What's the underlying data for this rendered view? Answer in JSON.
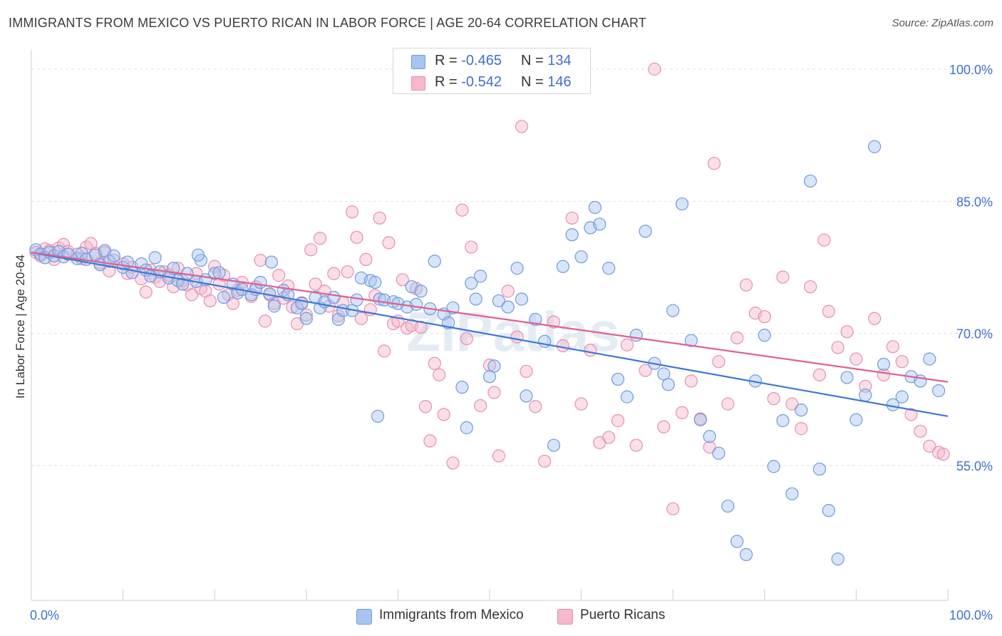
{
  "title": "IMMIGRANTS FROM MEXICO VS PUERTO RICAN IN LABOR FORCE | AGE 20-64 CORRELATION CHART",
  "source": "Source: ZipAtlas.com",
  "watermark": "ZIPatlas",
  "legend": {
    "rows": [
      {
        "r_label": "R =",
        "r_value": "-0.465",
        "n_label": "N =",
        "n_value": "134"
      },
      {
        "r_label": "R =",
        "r_value": "-0.542",
        "n_label": "N =",
        "n_value": "146"
      }
    ]
  },
  "bottom_legend": [
    "Immigrants from Mexico",
    "Puerto Ricans"
  ],
  "colors": {
    "blue_fill": "#a9c4f0",
    "blue_stroke": "#6e9be0",
    "blue_line": "#3b78d8",
    "pink_fill": "#f5b8cc",
    "pink_stroke": "#e78fae",
    "pink_line": "#e0608e",
    "tick_text": "#3f6fd1",
    "grid": "#e2e2e2"
  },
  "chart_data": {
    "type": "scatter",
    "title": "IMMIGRANTS FROM MEXICO VS PUERTO RICAN IN LABOR FORCE | AGE 20-64 CORRELATION CHART",
    "xlabel": "",
    "ylabel": "In Labor Force | Age 20-64",
    "xlim": [
      0,
      100
    ],
    "ylim": [
      40,
      102
    ],
    "x_tick_labels": [
      "0.0%",
      "100.0%"
    ],
    "y_ticks": [
      55,
      70,
      85,
      100
    ],
    "y_tick_labels": [
      "55.0%",
      "70.0%",
      "85.0%",
      "100.0%"
    ],
    "grid": true,
    "legend_position": "top-center",
    "series": [
      {
        "name": "Immigrants from Mexico",
        "r": -0.465,
        "n": 134,
        "trend": {
          "x": [
            0,
            100
          ],
          "y": [
            79.2,
            60.6
          ]
        },
        "points": [
          [
            0.5,
            79.5
          ],
          [
            1.0,
            79.0
          ],
          [
            1.5,
            78.6
          ],
          [
            2.0,
            79.2
          ],
          [
            2.5,
            78.8
          ],
          [
            3.0,
            79.3
          ],
          [
            3.5,
            78.7
          ],
          [
            4.0,
            79.0
          ],
          [
            5.0,
            78.5
          ],
          [
            5.5,
            79.1
          ],
          [
            6.0,
            78.4
          ],
          [
            7.0,
            78.9
          ],
          [
            7.5,
            77.8
          ],
          [
            8.0,
            79.4
          ],
          [
            8.5,
            78.2
          ],
          [
            9.0,
            78.8
          ],
          [
            10.0,
            77.5
          ],
          [
            10.5,
            78.1
          ],
          [
            11.0,
            76.9
          ],
          [
            12.0,
            77.9
          ],
          [
            12.5,
            77.2
          ],
          [
            13.0,
            76.5
          ],
          [
            13.5,
            78.6
          ],
          [
            14.0,
            77.0
          ],
          [
            15.0,
            76.3
          ],
          [
            15.5,
            77.4
          ],
          [
            16.0,
            76.0
          ],
          [
            16.5,
            75.6
          ],
          [
            17.0,
            76.8
          ],
          [
            18.0,
            75.9
          ],
          [
            18.5,
            78.3
          ],
          [
            19.0,
            76.1
          ],
          [
            20.0,
            76.8
          ],
          [
            20.5,
            76.9
          ],
          [
            21.0,
            74.1
          ],
          [
            22.0,
            75.6
          ],
          [
            22.5,
            74.6
          ],
          [
            23.0,
            75.0
          ],
          [
            24.0,
            74.4
          ],
          [
            24.5,
            75.0
          ],
          [
            25.0,
            75.8
          ],
          [
            26.0,
            74.5
          ],
          [
            26.5,
            73.1
          ],
          [
            27.5,
            74.9
          ],
          [
            28.0,
            74.4
          ],
          [
            29.0,
            72.9
          ],
          [
            29.5,
            73.4
          ],
          [
            30.0,
            71.7
          ],
          [
            31.0,
            74.1
          ],
          [
            31.5,
            72.9
          ],
          [
            32.0,
            73.6
          ],
          [
            33.0,
            74.1
          ],
          [
            33.5,
            71.6
          ],
          [
            34.0,
            72.6
          ],
          [
            35.0,
            72.6
          ],
          [
            35.5,
            73.8
          ],
          [
            36.0,
            76.3
          ],
          [
            37.0,
            76.0
          ],
          [
            37.5,
            75.8
          ],
          [
            38.0,
            73.9
          ],
          [
            38.5,
            73.8
          ],
          [
            39.5,
            73.6
          ],
          [
            40.0,
            73.4
          ],
          [
            41.0,
            73.0
          ],
          [
            41.5,
            75.3
          ],
          [
            42.0,
            73.3
          ],
          [
            42.5,
            74.8
          ],
          [
            43.5,
            72.8
          ],
          [
            44.0,
            78.2
          ],
          [
            45.0,
            72.2
          ],
          [
            45.5,
            71.2
          ],
          [
            46.0,
            72.9
          ],
          [
            47.0,
            63.9
          ],
          [
            47.5,
            59.3
          ],
          [
            48.0,
            75.7
          ],
          [
            48.5,
            73.9
          ],
          [
            49.0,
            76.5
          ],
          [
            50.0,
            65.1
          ],
          [
            50.5,
            66.3
          ],
          [
            51.0,
            73.7
          ],
          [
            52.0,
            73.0
          ],
          [
            53.0,
            77.4
          ],
          [
            53.5,
            73.9
          ],
          [
            54.0,
            62.9
          ],
          [
            55.0,
            71.6
          ],
          [
            56.0,
            69.1
          ],
          [
            57.0,
            57.3
          ],
          [
            58.0,
            77.6
          ],
          [
            59.0,
            81.2
          ],
          [
            60.0,
            78.7
          ],
          [
            61.0,
            82.0
          ],
          [
            61.5,
            84.3
          ],
          [
            62.0,
            82.4
          ],
          [
            63.0,
            77.4
          ],
          [
            64.0,
            64.8
          ],
          [
            65.0,
            62.8
          ],
          [
            66.0,
            69.8
          ],
          [
            67.0,
            81.6
          ],
          [
            68.0,
            66.6
          ],
          [
            69.0,
            65.4
          ],
          [
            69.5,
            64.2
          ],
          [
            70.0,
            72.6
          ],
          [
            71.0,
            84.7
          ],
          [
            72.0,
            69.2
          ],
          [
            73.0,
            60.2
          ],
          [
            74.0,
            58.3
          ],
          [
            75.0,
            56.4
          ],
          [
            76.0,
            50.4
          ],
          [
            77.0,
            46.4
          ],
          [
            78.0,
            44.9
          ],
          [
            79.0,
            64.6
          ],
          [
            80.0,
            69.8
          ],
          [
            81.0,
            54.9
          ],
          [
            82.0,
            60.1
          ],
          [
            83.0,
            51.8
          ],
          [
            84.0,
            61.3
          ],
          [
            85.0,
            87.3
          ],
          [
            86.0,
            54.6
          ],
          [
            87.0,
            49.9
          ],
          [
            88.0,
            44.4
          ],
          [
            89.0,
            65.0
          ],
          [
            90.0,
            60.2
          ],
          [
            91.0,
            63.0
          ],
          [
            92.0,
            91.2
          ],
          [
            93.0,
            66.5
          ],
          [
            94.0,
            61.9
          ],
          [
            95.0,
            62.8
          ],
          [
            96.0,
            65.1
          ],
          [
            97.0,
            64.6
          ],
          [
            98.0,
            67.1
          ],
          [
            99.0,
            63.5
          ],
          [
            37.8,
            60.6
          ],
          [
            18.2,
            78.9
          ],
          [
            26.2,
            78.1
          ]
        ]
      },
      {
        "name": "Puerto Ricans",
        "r": -0.542,
        "n": 146,
        "trend": {
          "x": [
            0,
            100
          ],
          "y": [
            79.2,
            64.5
          ]
        },
        "points": [
          [
            0.5,
            79.2
          ],
          [
            1.0,
            78.8
          ],
          [
            1.5,
            79.6
          ],
          [
            2.0,
            79.4
          ],
          [
            2.5,
            78.4
          ],
          [
            3.0,
            79.7
          ],
          [
            3.5,
            80.1
          ],
          [
            4.0,
            79.3
          ],
          [
            5.0,
            79.0
          ],
          [
            5.5,
            78.5
          ],
          [
            6.0,
            79.8
          ],
          [
            6.5,
            80.2
          ],
          [
            7.0,
            79.1
          ],
          [
            7.5,
            78.0
          ],
          [
            8.0,
            79.2
          ],
          [
            8.5,
            77.1
          ],
          [
            9.0,
            78.3
          ],
          [
            10.0,
            77.9
          ],
          [
            10.5,
            76.8
          ],
          [
            11.0,
            77.5
          ],
          [
            12.0,
            76.2
          ],
          [
            12.5,
            74.7
          ],
          [
            13.0,
            77.2
          ],
          [
            13.5,
            76.4
          ],
          [
            14.0,
            75.9
          ],
          [
            14.5,
            77.0
          ],
          [
            15.0,
            76.6
          ],
          [
            15.5,
            75.3
          ],
          [
            16.0,
            77.4
          ],
          [
            16.5,
            76.0
          ],
          [
            17.0,
            75.5
          ],
          [
            17.5,
            74.4
          ],
          [
            18.0,
            76.8
          ],
          [
            18.5,
            75.1
          ],
          [
            19.0,
            74.8
          ],
          [
            19.5,
            73.7
          ],
          [
            20.0,
            77.6
          ],
          [
            20.5,
            75.6
          ],
          [
            21.0,
            76.6
          ],
          [
            21.5,
            74.4
          ],
          [
            22.0,
            73.4
          ],
          [
            22.5,
            74.9
          ],
          [
            23.0,
            75.8
          ],
          [
            24.0,
            74.2
          ],
          [
            24.5,
            75.3
          ],
          [
            25.0,
            78.3
          ],
          [
            25.5,
            71.4
          ],
          [
            26.0,
            74.4
          ],
          [
            26.5,
            73.4
          ],
          [
            27.0,
            76.6
          ],
          [
            27.5,
            74.0
          ],
          [
            28.0,
            75.4
          ],
          [
            28.5,
            73.0
          ],
          [
            29.0,
            71.1
          ],
          [
            29.5,
            73.5
          ],
          [
            30.0,
            72.1
          ],
          [
            30.5,
            79.5
          ],
          [
            31.0,
            75.6
          ],
          [
            31.5,
            80.8
          ],
          [
            32.0,
            74.8
          ],
          [
            32.5,
            73.1
          ],
          [
            33.0,
            76.8
          ],
          [
            33.5,
            72.0
          ],
          [
            34.0,
            73.5
          ],
          [
            34.5,
            77.0
          ],
          [
            35.0,
            83.8
          ],
          [
            35.5,
            80.9
          ],
          [
            36.0,
            71.7
          ],
          [
            36.5,
            78.4
          ],
          [
            37.0,
            72.7
          ],
          [
            37.5,
            74.3
          ],
          [
            38.0,
            83.1
          ],
          [
            38.5,
            68.0
          ],
          [
            39.0,
            80.3
          ],
          [
            39.5,
            71.1
          ],
          [
            40.0,
            71.4
          ],
          [
            40.5,
            76.1
          ],
          [
            41.0,
            70.6
          ],
          [
            41.5,
            70.9
          ],
          [
            42.0,
            75.1
          ],
          [
            42.5,
            70.7
          ],
          [
            43.0,
            61.7
          ],
          [
            43.5,
            57.8
          ],
          [
            44.0,
            66.6
          ],
          [
            44.5,
            65.3
          ],
          [
            45.0,
            60.8
          ],
          [
            46.0,
            55.3
          ],
          [
            47.0,
            84.0
          ],
          [
            47.5,
            69.4
          ],
          [
            48.0,
            79.8
          ],
          [
            49.0,
            61.8
          ],
          [
            50.0,
            66.4
          ],
          [
            50.5,
            63.3
          ],
          [
            51.0,
            56.1
          ],
          [
            52.0,
            74.8
          ],
          [
            53.0,
            69.6
          ],
          [
            53.5,
            93.5
          ],
          [
            54.0,
            65.7
          ],
          [
            55.0,
            61.7
          ],
          [
            56.0,
            55.5
          ],
          [
            57.0,
            71.3
          ],
          [
            58.0,
            68.6
          ],
          [
            59.0,
            83.1
          ],
          [
            60.0,
            62.0
          ],
          [
            61.0,
            68.1
          ],
          [
            62.0,
            57.6
          ],
          [
            63.0,
            58.2
          ],
          [
            64.0,
            60.1
          ],
          [
            65.0,
            68.7
          ],
          [
            66.0,
            57.3
          ],
          [
            67.0,
            65.8
          ],
          [
            68.0,
            100.0
          ],
          [
            69.0,
            59.4
          ],
          [
            70.0,
            50.1
          ],
          [
            71.0,
            61.0
          ],
          [
            72.0,
            64.6
          ],
          [
            73.0,
            60.3
          ],
          [
            74.0,
            57.1
          ],
          [
            75.0,
            66.8
          ],
          [
            76.0,
            62.0
          ],
          [
            77.0,
            69.5
          ],
          [
            78.0,
            75.5
          ],
          [
            79.0,
            72.3
          ],
          [
            80.0,
            71.9
          ],
          [
            81.0,
            62.6
          ],
          [
            82.0,
            76.4
          ],
          [
            83.0,
            62.0
          ],
          [
            84.0,
            59.2
          ],
          [
            85.0,
            75.3
          ],
          [
            86.0,
            65.3
          ],
          [
            87.0,
            72.5
          ],
          [
            88.0,
            68.4
          ],
          [
            89.0,
            70.2
          ],
          [
            90.0,
            67.1
          ],
          [
            91.0,
            64.0
          ],
          [
            92.0,
            71.7
          ],
          [
            93.0,
            65.3
          ],
          [
            94.0,
            68.5
          ],
          [
            95.0,
            66.8
          ],
          [
            96.0,
            60.8
          ],
          [
            97.0,
            58.9
          ],
          [
            98.0,
            57.2
          ],
          [
            99.0,
            56.5
          ],
          [
            99.5,
            56.3
          ],
          [
            74.5,
            89.3
          ],
          [
            86.5,
            80.6
          ]
        ]
      }
    ]
  }
}
